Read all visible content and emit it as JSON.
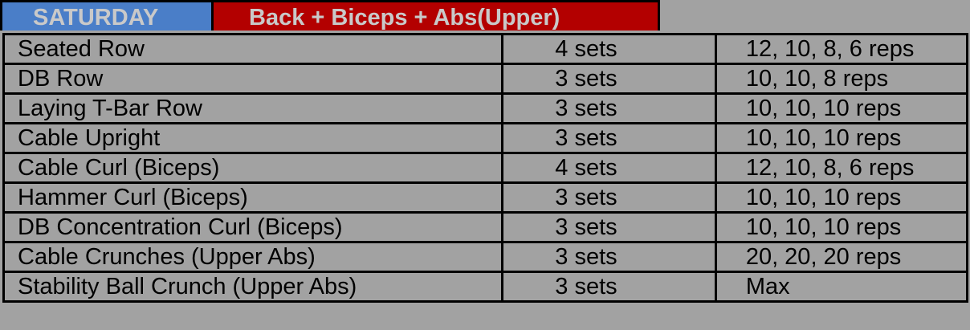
{
  "header": {
    "day": "SATURDAY",
    "title": "Back + Biceps + Abs(Upper)"
  },
  "rows": [
    {
      "exercise": "Seated Row",
      "sets": "4 sets",
      "reps": "12, 10, 8, 6 reps"
    },
    {
      "exercise": "DB Row",
      "sets": "3 sets",
      "reps": "10, 10, 8 reps"
    },
    {
      "exercise": "Laying T-Bar Row",
      "sets": "3 sets",
      "reps": "10, 10, 10 reps"
    },
    {
      "exercise": "Cable Upright",
      "sets": "3 sets",
      "reps": "10, 10, 10 reps"
    },
    {
      "exercise": "Cable Curl (Biceps)",
      "sets": "4 sets",
      "reps": "12, 10, 8, 6 reps"
    },
    {
      "exercise": "Hammer Curl (Biceps)",
      "sets": "3 sets",
      "reps": "10, 10, 10 reps"
    },
    {
      "exercise": "DB Concentration Curl (Biceps)",
      "sets": "3 sets",
      "reps": "10, 10, 10 reps"
    },
    {
      "exercise": "Cable Crunches (Upper Abs)",
      "sets": "3 sets",
      "reps": "20, 20, 20 reps"
    },
    {
      "exercise": "Stability Ball Crunch (Upper Abs)",
      "sets": "3 sets",
      "reps": "Max"
    }
  ],
  "colors": {
    "day_bg": "#4a7ec8",
    "title_bg": "#b30000",
    "table_bg": "#a2a2a2",
    "header_text": "#c9c9c9"
  }
}
